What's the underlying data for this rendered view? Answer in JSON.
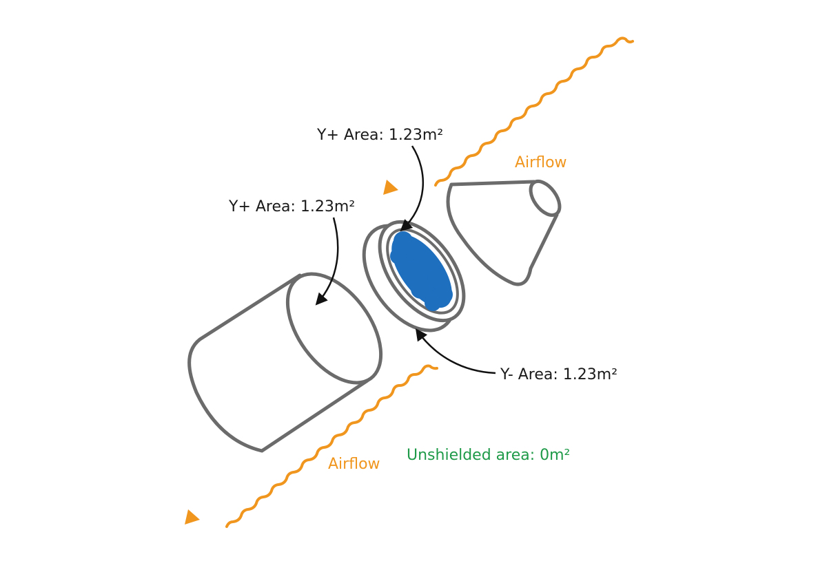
{
  "labels": {
    "top_area": "Y+ Area: 1.23m²",
    "left_area": "Y+ Area: 1.23m²",
    "bottom_area": "Y- Area: 1.23m²",
    "airflow_top": "Airflow",
    "airflow_bottom": "Airflow",
    "unshielded": "Unshielded area: 0m²"
  },
  "colors": {
    "outline": "#6b6b6b",
    "leader": "#111111",
    "airflow": "#f0961e",
    "unshielded": "#1e9a48",
    "payload": "#1f6fbf"
  },
  "icons": {
    "arrowhead": "triangle-arrowhead-icon"
  }
}
